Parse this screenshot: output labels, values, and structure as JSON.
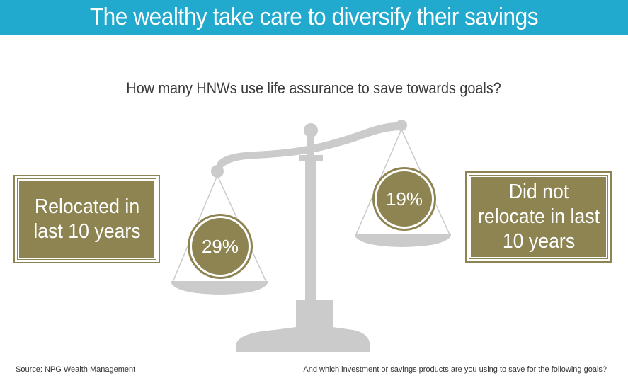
{
  "header": {
    "title": "The wealthy take care to diversify their savings",
    "background_color": "#22a9ce"
  },
  "question": "How many HNWs use life assurance to save towards goals?",
  "left_group": {
    "label": "Relocated in last 10 years",
    "percent": "29%"
  },
  "right_group": {
    "label": "Did not relocate in last 10 years",
    "percent": "19%"
  },
  "colors": {
    "accent": "#8d8452",
    "scale": "#cbcbcb"
  },
  "icons": {
    "scale": "balance-scale-icon"
  },
  "footer": {
    "source": "Source: NPG Wealth Management",
    "note": "And which investment or savings products are you using to save for the following goals?"
  }
}
